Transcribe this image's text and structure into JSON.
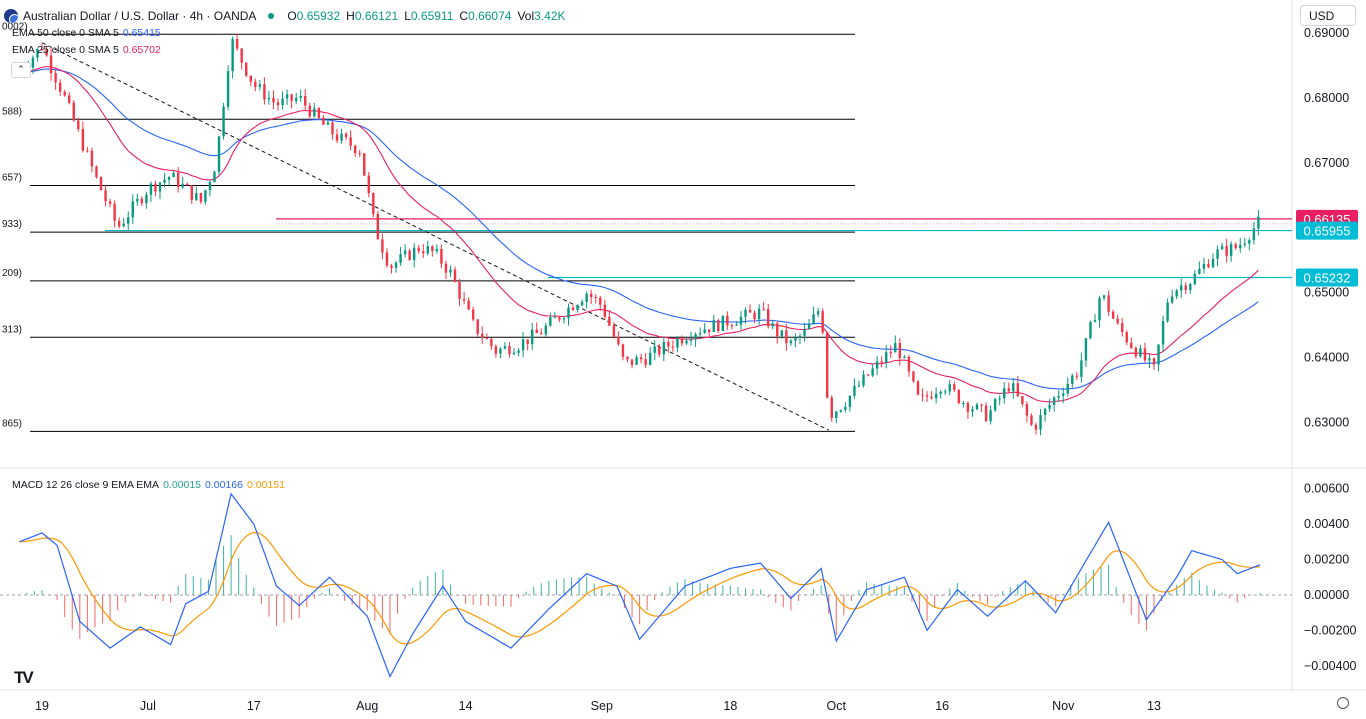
{
  "header": {
    "title": "Australian Dollar / U.S. Dollar · 4h · OANDA",
    "o_label": "O",
    "o_value": "0.65932",
    "h_label": "H",
    "h_value": "0.66121",
    "l_label": "L",
    "l_value": "0.65911",
    "c_label": "C",
    "c_value": "0.66074",
    "vol_label": "Vol",
    "vol_value": "3.42K"
  },
  "currency_button": "USD",
  "collapse_icon": "chevron-up-icon",
  "indicators": {
    "ema50_label": "EMA 50 close 0 SMA 5",
    "ema50_value": "0.65415",
    "ema25_label": "EMA 25 close 0 SMA 5",
    "ema25_value": "0.65702",
    "macd_label": "MACD 12 26 close 9 EMA EMA",
    "macd_hist": "0.00015",
    "macd_line": "0.00166",
    "macd_signal": "0.00151"
  },
  "logo": "TV",
  "colors": {
    "up": "#089981",
    "down": "#f23645",
    "ema50": "#2962ff",
    "ema25": "#e91e63",
    "macd": "#2962ff",
    "signal": "#ff9800",
    "hist_up": "#26a69a",
    "hist_down": "#ef5350",
    "resistance": "#e91e63",
    "support": "#00bcd4"
  },
  "chart_data": [
    {
      "type": "candlestick",
      "title": "Australian Dollar / U.S. Dollar · 4h · OANDA",
      "x_ticks": [
        "19",
        "Jul",
        "17",
        "Aug",
        "14",
        "Sep",
        "18",
        "Oct",
        "16",
        "Nov",
        "13"
      ],
      "y_ticks": [
        "0.69000",
        "0.68000",
        "0.67000",
        "0.65000",
        "0.64000",
        "0.63000"
      ],
      "ylim": [
        0.6245,
        0.692
      ],
      "price_labels": [
        {
          "value": 0.66135,
          "label": "0.66135",
          "color": "#e91e63"
        },
        {
          "value": 0.65955,
          "label": "0.65955",
          "color": "#00bcd4"
        },
        {
          "value": 0.65232,
          "label": "0.65232",
          "color": "#00bcd4"
        }
      ],
      "fib_levels": [
        {
          "value": 0.6898,
          "label": "0002)"
        },
        {
          "value": 0.6767,
          "label": "588)"
        },
        {
          "value": 0.6665,
          "label": "657)"
        },
        {
          "value": 0.6593,
          "label": "933)"
        },
        {
          "value": 0.6518,
          "label": "209)"
        },
        {
          "value": 0.6431,
          "label": "313)"
        },
        {
          "value": 0.6286,
          "label": "865)"
        }
      ],
      "trendline": {
        "from": [
          "Jun 19",
          0.6885
        ],
        "to": [
          "Oct 1",
          0.6288
        ]
      },
      "price_path": [
        [
          "Jun 16",
          0.684
        ],
        [
          "Jun 19",
          0.688
        ],
        [
          "Jun 22",
          0.68
        ],
        [
          "Jun 26",
          0.668
        ],
        [
          "Jun 29",
          0.66
        ],
        [
          "Jul 3",
          0.666
        ],
        [
          "Jul 6",
          0.668
        ],
        [
          "Jul 10",
          0.664
        ],
        [
          "Jul 12",
          0.67
        ],
        [
          "Jul 14",
          0.689
        ],
        [
          "Jul 17",
          0.682
        ],
        [
          "Jul 20",
          0.679
        ],
        [
          "Jul 23",
          0.68
        ],
        [
          "Jul 26",
          0.676
        ],
        [
          "Jul 28",
          0.674
        ],
        [
          "Jul 31",
          0.672
        ],
        [
          "Aug 2",
          0.66
        ],
        [
          "Aug 4",
          0.654
        ],
        [
          "Aug 8",
          0.657
        ],
        [
          "Aug 10",
          0.656
        ],
        [
          "Aug 12",
          0.653
        ],
        [
          "Aug 15",
          0.645
        ],
        [
          "Aug 18",
          0.641
        ],
        [
          "Aug 21",
          0.642
        ],
        [
          "Aug 24",
          0.644
        ],
        [
          "Aug 27",
          0.647
        ],
        [
          "Aug 30",
          0.65
        ],
        [
          "Sep 1",
          0.648
        ],
        [
          "Sep 4",
          0.639
        ],
        [
          "Sep 7",
          0.64
        ],
        [
          "Sep 10",
          0.642
        ],
        [
          "Sep 13",
          0.644
        ],
        [
          "Sep 16",
          0.645
        ],
        [
          "Sep 19",
          0.646
        ],
        [
          "Sep 22",
          0.647
        ],
        [
          "Sep 24",
          0.644
        ],
        [
          "Sep 26",
          0.642
        ],
        [
          "Sep 28",
          0.644
        ],
        [
          "Sep 30",
          0.648
        ],
        [
          "Oct 1",
          0.631
        ],
        [
          "Oct 3",
          0.633
        ],
        [
          "Oct 6",
          0.637
        ],
        [
          "Oct 10",
          0.642
        ],
        [
          "Oct 13",
          0.633
        ],
        [
          "Oct 16",
          0.636
        ],
        [
          "Oct 19",
          0.633
        ],
        [
          "Oct 22",
          0.631
        ],
        [
          "Oct 25",
          0.636
        ],
        [
          "Oct 28",
          0.629
        ],
        [
          "Oct 31",
          0.634
        ],
        [
          "Nov 3",
          0.638
        ],
        [
          "Nov 6",
          0.65
        ],
        [
          "Nov 8",
          0.645
        ],
        [
          "Nov 10",
          0.642
        ],
        [
          "Nov 13",
          0.638
        ],
        [
          "Nov 15",
          0.65
        ],
        [
          "Nov 18",
          0.652
        ],
        [
          "Nov 21",
          0.656
        ],
        [
          "Nov 24",
          0.657
        ],
        [
          "Nov 27",
          0.661
        ]
      ]
    },
    {
      "type": "line",
      "title": "MACD 12 26 close 9 EMA EMA",
      "y_ticks": [
        "0.00600",
        "0.00400",
        "0.00200",
        "0.00000",
        "−0.00200",
        "−0.00400"
      ],
      "ylim": [
        -0.0048,
        0.0066
      ],
      "macd_path": [
        [
          "Jun 16",
          0.003
        ],
        [
          "Jun 19",
          0.0035
        ],
        [
          "Jun 21",
          0.0028
        ],
        [
          "Jun 24",
          -0.0015
        ],
        [
          "Jun 28",
          -0.003
        ],
        [
          "Jul 2",
          -0.0018
        ],
        [
          "Jul 6",
          -0.0028
        ],
        [
          "Jul 8",
          -0.0005
        ],
        [
          "Jul 11",
          0.0002
        ],
        [
          "Jul 14",
          0.0057
        ],
        [
          "Jul 17",
          0.004
        ],
        [
          "Jul 20",
          0.0005
        ],
        [
          "Jul 23",
          -0.0006
        ],
        [
          "Jul 27",
          0.001
        ],
        [
          "Aug 1",
          -0.0012
        ],
        [
          "Aug 4",
          -0.0046
        ],
        [
          "Aug 7",
          -0.0022
        ],
        [
          "Aug 11",
          0.0005
        ],
        [
          "Aug 14",
          -0.0015
        ],
        [
          "Aug 20",
          -0.003
        ],
        [
          "Aug 25",
          -0.0008
        ],
        [
          "Aug 30",
          0.0012
        ],
        [
          "Sep 3",
          0.0005
        ],
        [
          "Sep 6",
          -0.0025
        ],
        [
          "Sep 12",
          0.0005
        ],
        [
          "Sep 18",
          0.0015
        ],
        [
          "Sep 22",
          0.0018
        ],
        [
          "Sep 26",
          -0.0002
        ],
        [
          "Sep 30",
          0.0015
        ],
        [
          "Oct 2",
          -0.0026
        ],
        [
          "Oct 6",
          0.0003
        ],
        [
          "Oct 11",
          0.001
        ],
        [
          "Oct 14",
          -0.002
        ],
        [
          "Oct 18",
          0.0003
        ],
        [
          "Oct 22",
          -0.0012
        ],
        [
          "Oct 27",
          0.0008
        ],
        [
          "Oct 31",
          -0.001
        ],
        [
          "Nov 3",
          0.0012
        ],
        [
          "Nov 7",
          0.0041
        ],
        [
          "Nov 12",
          -0.0014
        ],
        [
          "Nov 16",
          0.001
        ],
        [
          "Nov 18",
          0.0025
        ],
        [
          "Nov 22",
          0.002
        ],
        [
          "Nov 24",
          0.0012
        ],
        [
          "Nov 27",
          0.0017
        ]
      ]
    }
  ]
}
